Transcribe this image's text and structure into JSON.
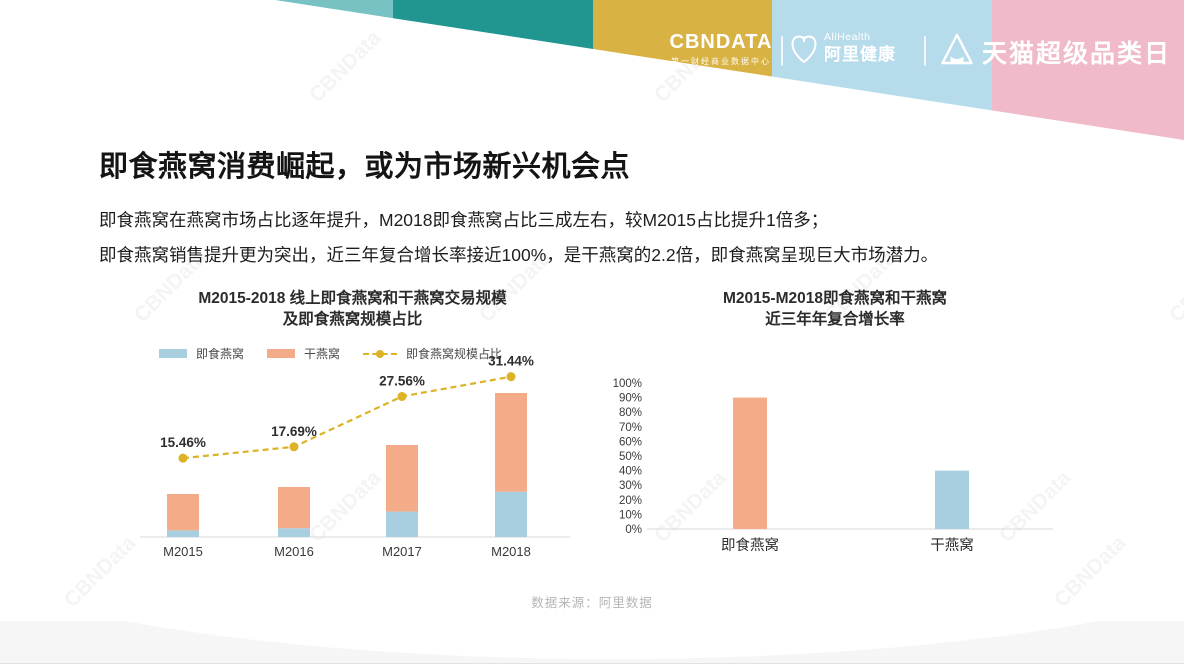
{
  "header": {
    "cbndata_logo": "CBNDATA",
    "cbndata_tagline": "第一财经商业数据中心",
    "alihealth_en": "AliHealth",
    "alihealth_cn": "阿里健康",
    "tmall_campaign": "天猫超级品类日"
  },
  "watermark": {
    "text": "CBNData"
  },
  "page": {
    "title": "即食燕窝消费崛起，或为市场新兴机会点",
    "paragraph_line1": "即食燕窝在燕窝市场占比逐年提升，M2018即食燕窝占比三成左右，较M2015占比提升1倍多；",
    "paragraph_line2": "即食燕窝销售提升更为突出，近三年复合增长率接近100%，是干燕窝的2.2倍，即食燕窝呈现巨大市场潜力。",
    "source": "数据来源：阿里数据"
  },
  "colors": {
    "header_teal_light": "#79c2c3",
    "header_teal_dark": "#219690",
    "header_gold": "#d9b244",
    "header_blue": "#b6dcec",
    "header_pink": "#f0bac9",
    "bar_instant_blue": "#a7cfdf",
    "bar_dry_orange": "#f3ab88",
    "ratio_line_gold": "#dcb226",
    "axis_gray": "#d9d9d9",
    "source_gray": "#b5b5b5"
  },
  "chart_data": [
    {
      "type": "bar",
      "subtype": "stacked-bar-with-line",
      "title_line1": "M2015-2018 线上即食燕窝和干燕窝交易规模",
      "title_line2": "及即食燕窝规模占比",
      "categories": [
        "M2015",
        "M2016",
        "M2017",
        "M2018"
      ],
      "series": [
        {
          "name": "即食燕窝",
          "color": "#a7cfdf",
          "stack": "bottom",
          "values_index": [
            6.6,
            8.8,
            25.4,
            45.3
          ]
        },
        {
          "name": "干燕窝",
          "color": "#f3ab88",
          "stack": "top",
          "values_index": [
            36.4,
            41.2,
            66.6,
            98.7
          ]
        }
      ],
      "line": {
        "name": "即食燕窝规模占比",
        "color": "#dcb226",
        "values_pct": [
          15.46,
          17.69,
          27.56,
          31.44
        ],
        "labels": [
          "15.46%",
          "17.69%",
          "27.56%",
          "31.44%"
        ]
      },
      "value_axis_visible": false,
      "note_units": "bar heights are relative index (no axis shown)",
      "legend_position": "top"
    },
    {
      "type": "bar",
      "title_line1": "M2015-M2018即食燕窝和干燕窝",
      "title_line2": "近三年年复合增长率",
      "categories": [
        "即食燕窝",
        "干燕窝"
      ],
      "values_pct": [
        90,
        40
      ],
      "bar_colors": [
        "#f3ab88",
        "#a7cfdf"
      ],
      "ylim": [
        0,
        100
      ],
      "yticks_pct": [
        0,
        10,
        20,
        30,
        40,
        50,
        60,
        70,
        80,
        90,
        100
      ],
      "grid": false,
      "legend_position": "none"
    }
  ]
}
